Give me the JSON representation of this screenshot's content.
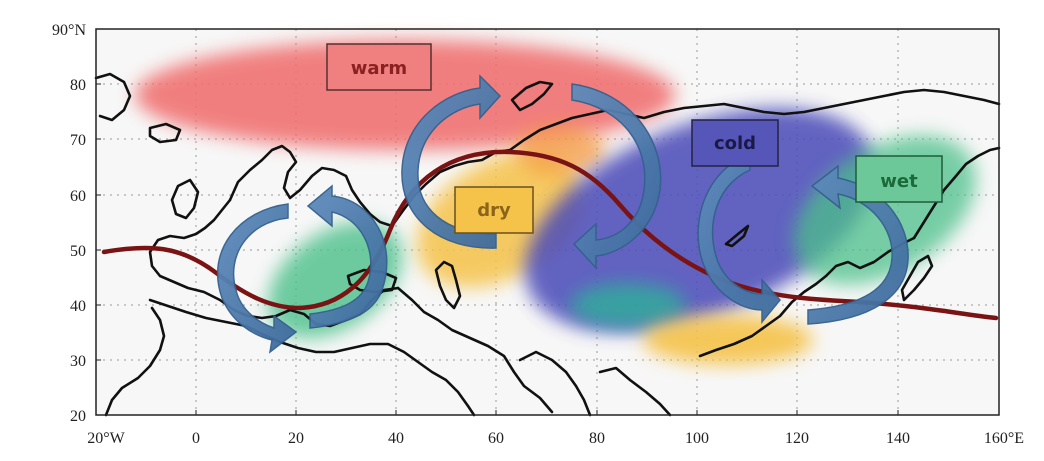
{
  "map": {
    "lat_ticks": [
      "90°N",
      "80",
      "70",
      "60",
      "50",
      "40",
      "30",
      "20"
    ],
    "lon_ticks": [
      "20°W",
      "0",
      "20",
      "40",
      "60",
      "80",
      "100",
      "120",
      "140",
      "160°E"
    ],
    "lat_range": [
      20,
      90
    ],
    "lon_range": [
      -20,
      160
    ],
    "colors": {
      "warm": "#f06a6a",
      "dry": "#f5c24a",
      "cold": "#4a4ab8",
      "wet": "#4cc08a",
      "arrow": "#4a78a8",
      "jet": "#7a1414"
    },
    "labels": {
      "warm": "warm",
      "dry": "dry",
      "cold": "cold",
      "wet": "wet"
    }
  }
}
